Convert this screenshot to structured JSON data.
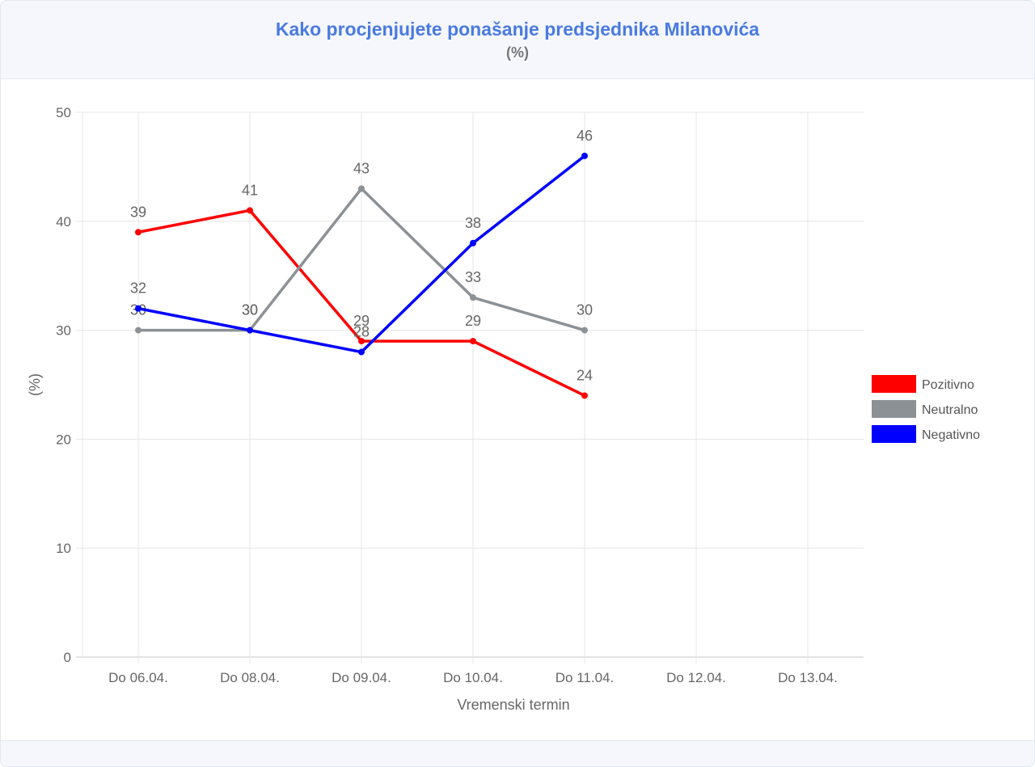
{
  "header": {
    "title": "Kako procjenjujete ponašanje predsjednika Milanovića",
    "subtitle": "(%)"
  },
  "chart_data": {
    "type": "line",
    "title": "Kako procjenjujete ponašanje predsjednika Milanovića",
    "subtitle": "(%)",
    "xlabel": "Vremenski termin",
    "ylabel": "(%)",
    "categories": [
      "Do 06.04.",
      "Do 08.04.",
      "Do 09.04.",
      "Do 10.04.",
      "Do 11.04.",
      "Do 12.04.",
      "Do 13.04."
    ],
    "ylim": [
      0,
      50
    ],
    "yticks": [
      0,
      10,
      20,
      30,
      40,
      50
    ],
    "grid": true,
    "legend_position": "right",
    "series": [
      {
        "name": "Pozitivno",
        "color": "#ff0000",
        "values": [
          39,
          41,
          29,
          29,
          24,
          null,
          null
        ]
      },
      {
        "name": "Neutralno",
        "color": "#8c9196",
        "values": [
          30,
          30,
          43,
          33,
          30,
          null,
          null
        ]
      },
      {
        "name": "Negativno",
        "color": "#0000ff",
        "values": [
          32,
          30,
          28,
          38,
          46,
          null,
          null
        ]
      }
    ]
  }
}
